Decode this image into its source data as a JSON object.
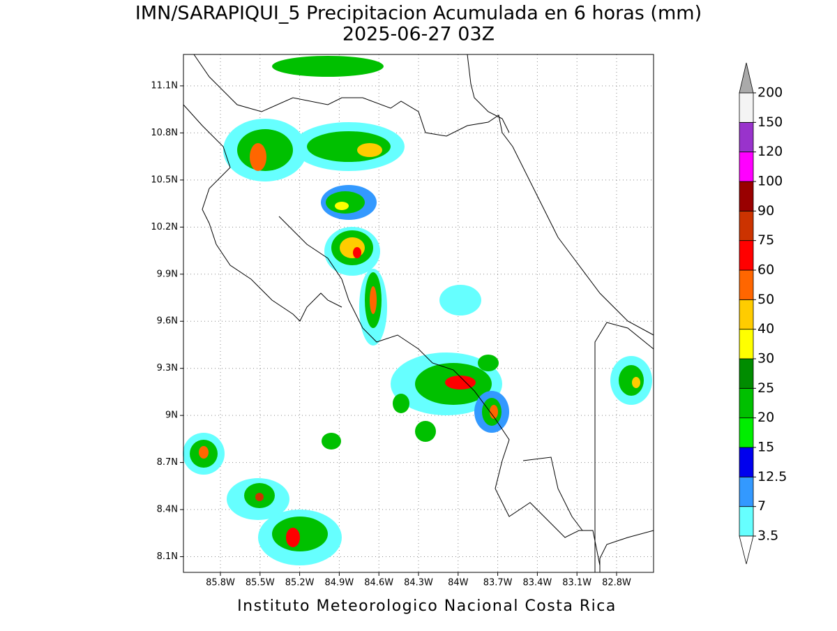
{
  "chart_data": {
    "type": "map",
    "title": "IMN/SARAPIQUI_5 Precipitacion Acumulada en 6 horas (mm)",
    "subtitle": "2025-06-27 03Z",
    "footer": "Instituto Meteorologico Nacional Costa Rica",
    "xlim": [
      -86.08,
      -82.52
    ],
    "ylim": [
      8.0,
      11.3
    ],
    "grid": true,
    "xticks": [
      {
        "value": -85.8,
        "label": "85.8W"
      },
      {
        "value": -85.5,
        "label": "85.5W"
      },
      {
        "value": -85.2,
        "label": "85.2W"
      },
      {
        "value": -84.9,
        "label": "84.9W"
      },
      {
        "value": -84.6,
        "label": "84.6W"
      },
      {
        "value": -84.3,
        "label": "84.3W"
      },
      {
        "value": -84.0,
        "label": "84W"
      },
      {
        "value": -83.7,
        "label": "83.7W"
      },
      {
        "value": -83.4,
        "label": "83.4W"
      },
      {
        "value": -83.1,
        "label": "83.1W"
      },
      {
        "value": -82.8,
        "label": "82.8W"
      }
    ],
    "yticks": [
      {
        "value": 8.1,
        "label": "8.1N"
      },
      {
        "value": 8.4,
        "label": "8.4N"
      },
      {
        "value": 8.7,
        "label": "8.7N"
      },
      {
        "value": 9.0,
        "label": "9N"
      },
      {
        "value": 9.3,
        "label": "9.3N"
      },
      {
        "value": 9.6,
        "label": "9.6N"
      },
      {
        "value": 9.9,
        "label": "9.9N"
      },
      {
        "value": 10.2,
        "label": "10.2N"
      },
      {
        "value": 10.5,
        "label": "10.5N"
      },
      {
        "value": 10.8,
        "label": "10.8N"
      },
      {
        "value": 11.1,
        "label": "11.1N"
      }
    ],
    "colorbar": {
      "levels": [
        3.5,
        7,
        12.5,
        15,
        20,
        25,
        30,
        40,
        50,
        60,
        75,
        90,
        100,
        120,
        150,
        200
      ],
      "colors": [
        "#ffffff",
        "#66ffff",
        "#3399ff",
        "#0000ee",
        "#00ee00",
        "#00c000",
        "#008c00",
        "#ffff00",
        "#ffcc00",
        "#ff6600",
        "#ff0000",
        "#cc3300",
        "#990000",
        "#ff00ff",
        "#9933cc",
        "#f4f4f4",
        "#aaaaaa"
      ]
    }
  }
}
